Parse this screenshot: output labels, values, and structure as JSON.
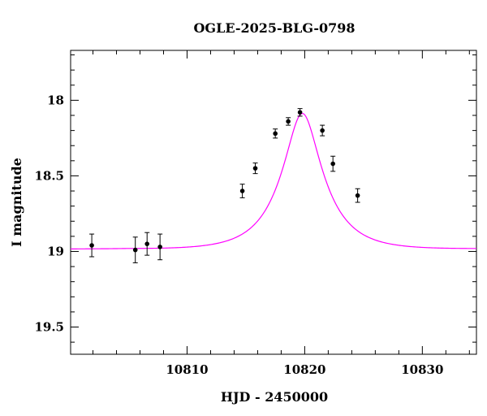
{
  "chart_data": {
    "type": "scatter",
    "title": "OGLE-2025-BLG-0798",
    "xlabel": "HJD - 2450000",
    "ylabel": "I magnitude",
    "xlim": [
      10800.1,
      10834.6
    ],
    "ylim": [
      19.68,
      17.67
    ],
    "y_inverted": true,
    "grid": false,
    "x_tick_labels": [
      {
        "value": 10810,
        "label": "10810"
      },
      {
        "value": 10820,
        "label": "10820"
      },
      {
        "value": 10830,
        "label": "10830"
      }
    ],
    "y_tick_labels": [
      {
        "value": 18,
        "label": "18"
      },
      {
        "value": 18.5,
        "label": "18.5"
      },
      {
        "value": 19,
        "label": "19"
      },
      {
        "value": 19.5,
        "label": "19.5"
      }
    ],
    "series": [
      {
        "kind": "points_with_errorbars",
        "color": "#000000",
        "points": [
          {
            "x": 10801.9,
            "y": 18.96,
            "err": 0.075
          },
          {
            "x": 10805.6,
            "y": 18.99,
            "err": 0.085
          },
          {
            "x": 10806.6,
            "y": 18.95,
            "err": 0.075
          },
          {
            "x": 10807.7,
            "y": 18.97,
            "err": 0.085
          },
          {
            "x": 10814.7,
            "y": 18.6,
            "err": 0.045
          },
          {
            "x": 10815.8,
            "y": 18.45,
            "err": 0.035
          },
          {
            "x": 10817.5,
            "y": 18.22,
            "err": 0.03
          },
          {
            "x": 10818.6,
            "y": 18.14,
            "err": 0.025
          },
          {
            "x": 10819.6,
            "y": 18.08,
            "err": 0.025
          },
          {
            "x": 10821.5,
            "y": 18.2,
            "err": 0.035
          },
          {
            "x": 10822.4,
            "y": 18.42,
            "err": 0.05
          },
          {
            "x": 10824.5,
            "y": 18.63,
            "err": 0.045
          }
        ]
      },
      {
        "kind": "model_curve",
        "color": "#ff00ff",
        "model": {
          "t0": 10819.8,
          "tE": 3.73,
          "u0": 0.36,
          "baseline": 18.985,
          "peak": 18.087,
          "blend_fraction": 0.69
        }
      }
    ]
  }
}
